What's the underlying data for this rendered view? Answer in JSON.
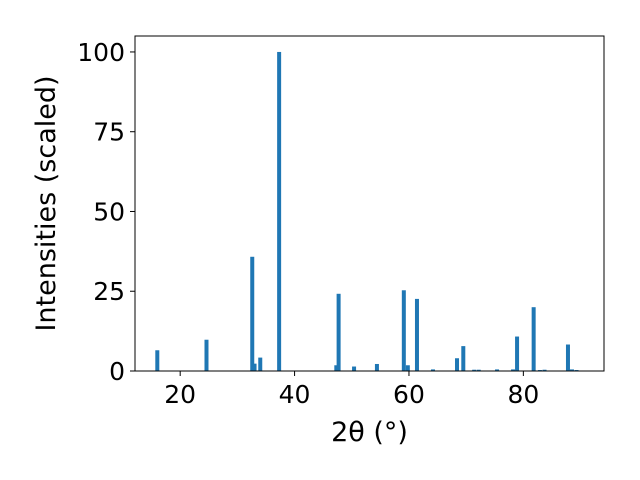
{
  "chart_data": {
    "type": "bar",
    "xlabel": "2θ (°)",
    "ylabel": "Intensities (scaled)",
    "xlim": [
      12.1,
      94.1
    ],
    "ylim": [
      0,
      105
    ],
    "xticks": [
      20,
      40,
      60,
      80
    ],
    "yticks": [
      0,
      25,
      50,
      75,
      100
    ],
    "grid": false,
    "bar_color": "#1f77b4",
    "bar_width_deg": 0.7,
    "bars": [
      {
        "x": 16.0,
        "y": 6.5
      },
      {
        "x": 24.6,
        "y": 9.8
      },
      {
        "x": 32.6,
        "y": 35.8
      },
      {
        "x": 33.0,
        "y": 2.3
      },
      {
        "x": 34.0,
        "y": 4.2
      },
      {
        "x": 37.3,
        "y": 100.0
      },
      {
        "x": 47.3,
        "y": 1.8
      },
      {
        "x": 47.7,
        "y": 24.2
      },
      {
        "x": 50.4,
        "y": 1.4
      },
      {
        "x": 54.4,
        "y": 2.2
      },
      {
        "x": 59.1,
        "y": 25.3
      },
      {
        "x": 59.8,
        "y": 1.8
      },
      {
        "x": 61.4,
        "y": 22.6
      },
      {
        "x": 64.2,
        "y": 0.5
      },
      {
        "x": 68.4,
        "y": 4.0
      },
      {
        "x": 69.5,
        "y": 7.8
      },
      {
        "x": 71.4,
        "y": 0.4
      },
      {
        "x": 72.2,
        "y": 0.4
      },
      {
        "x": 75.4,
        "y": 0.5
      },
      {
        "x": 78.2,
        "y": 0.5
      },
      {
        "x": 78.9,
        "y": 10.8
      },
      {
        "x": 81.8,
        "y": 20.0
      },
      {
        "x": 82.9,
        "y": 0.3
      },
      {
        "x": 83.7,
        "y": 0.4
      },
      {
        "x": 87.8,
        "y": 8.3
      },
      {
        "x": 88.5,
        "y": 0.5
      },
      {
        "x": 89.3,
        "y": 0.3
      }
    ]
  }
}
